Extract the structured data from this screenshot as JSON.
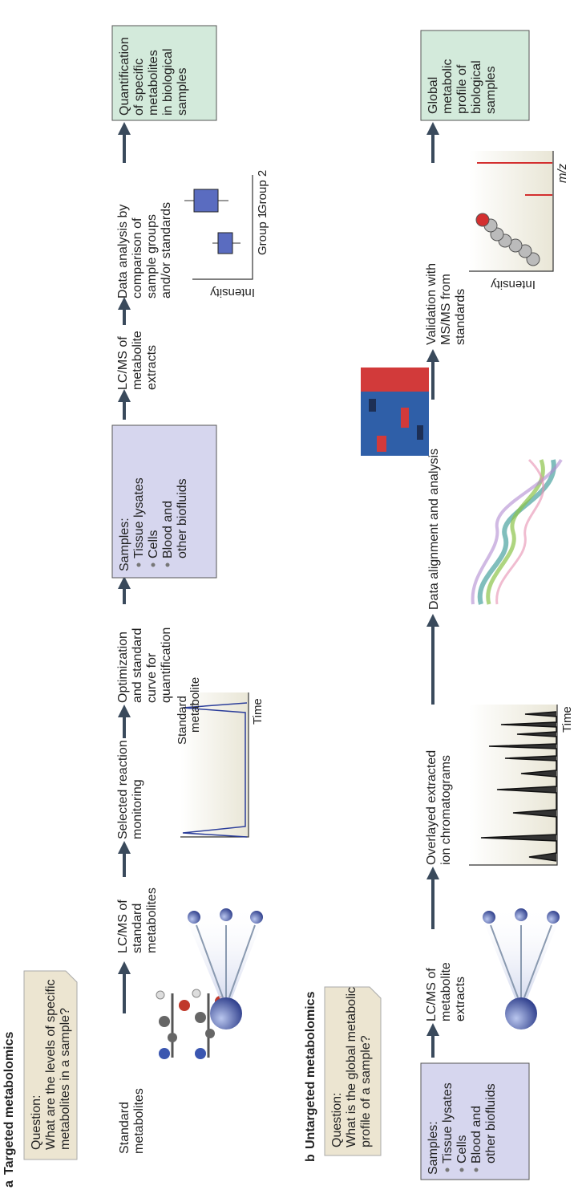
{
  "panel_a": {
    "label": "a",
    "title": "Targeted metabolomics",
    "question": {
      "heading": "Question:",
      "lines": [
        "What are the levels of specific",
        "metabolites in a sample?"
      ]
    },
    "steps": [
      {
        "lines": [
          "Standard",
          "metabolites"
        ]
      },
      {
        "lines": [
          "LC/MS of",
          "standard",
          "metabolites"
        ]
      },
      {
        "lines": [
          "Selected reaction",
          "monitoring"
        ]
      },
      {
        "lines": [
          "Optimization",
          "and standard",
          "curve for",
          "quantification"
        ]
      },
      {
        "lines": [
          "LC/MS of",
          "metabolite",
          "extracts"
        ]
      },
      {
        "lines": [
          "Data analysis by",
          "comparison of",
          "sample groups",
          "and/or standards"
        ]
      }
    ],
    "samples": {
      "heading": "Samples:",
      "items": [
        "Tissue lysates",
        "Cells",
        "Blood and",
        "other biofluids"
      ]
    },
    "result": {
      "lines": [
        "Quantification",
        "of specific",
        "metabolites",
        "in biological",
        "samples"
      ]
    },
    "srm_chart": {
      "annotation": [
        "Standard",
        "metabolite"
      ],
      "x_label": "Time"
    },
    "boxplot": {
      "y_label": "Intensity",
      "groups": [
        "Group 1",
        "Group 2"
      ]
    }
  },
  "panel_b": {
    "label": "b",
    "title": "Untargeted metabolomics",
    "question": {
      "heading": "Question:",
      "lines": [
        "What is the global metabolic",
        "profile of a sample?"
      ]
    },
    "samples": {
      "heading": "Samples:",
      "items": [
        "Tissue lysates",
        "Cells",
        "Blood and",
        "other biofluids"
      ]
    },
    "steps": [
      {
        "lines": [
          "LC/MS of",
          "metabolite",
          "extracts"
        ]
      },
      {
        "lines": [
          "Overlayed extracted",
          "ion chromatograms"
        ]
      },
      {
        "lines": [
          "Data alignment and analysis"
        ]
      },
      {
        "lines": [
          "Validation with",
          "MS/MS from",
          "standards"
        ]
      }
    ],
    "result": {
      "lines": [
        "Global",
        "metabolic",
        "profile of",
        "biological",
        "samples"
      ]
    },
    "chromatogram": {
      "x_label": "Time"
    },
    "ms_chart": {
      "y_label": "Intensity",
      "x_label": "m/z"
    }
  }
}
